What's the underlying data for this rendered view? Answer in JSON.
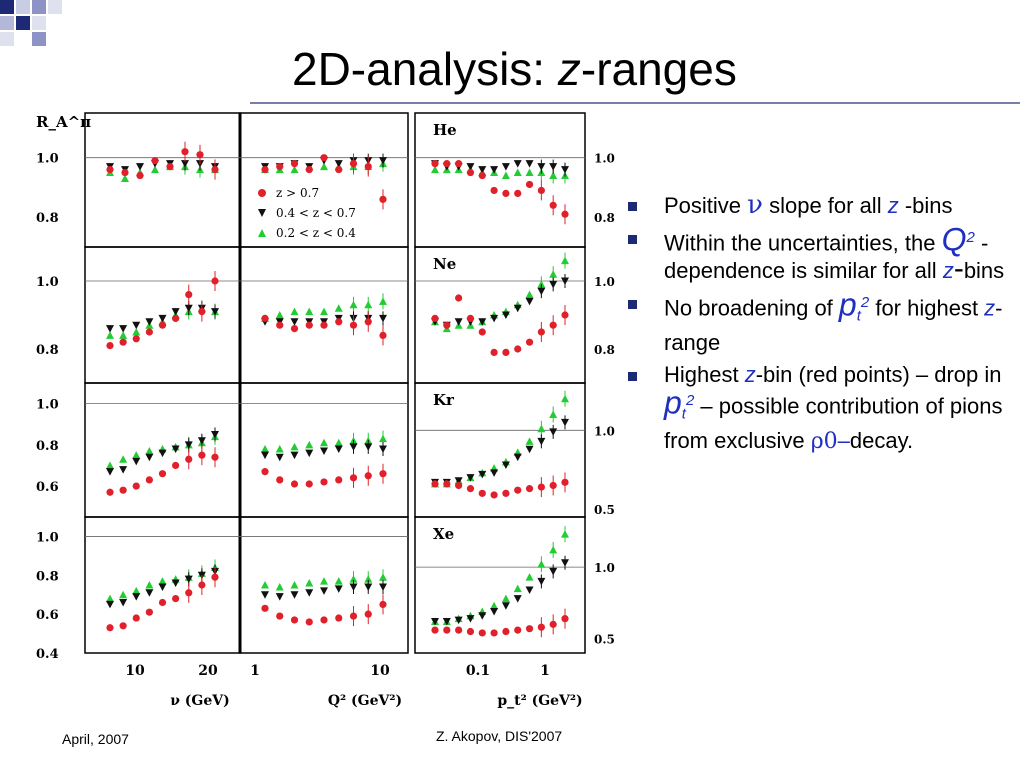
{
  "slide": {
    "title_main": "2D-analysis: ",
    "title_italic": "z",
    "title_rest": "-ranges",
    "footer_left": "April, 2007",
    "footer_center": "Z. Akopov, DIS'2007"
  },
  "bullets": [
    {
      "parts": [
        "Positive ",
        "ν",
        " slope for all ",
        "z",
        " -bins"
      ]
    },
    {
      "parts": [
        "Within the uncertainties, the ",
        "Q",
        "2",
        " -dependence is similar for all ",
        "z",
        "-",
        "bins"
      ]
    },
    {
      "parts": [
        "No broadening of ",
        "p",
        "t",
        "2",
        " for highest ",
        "z",
        "-range"
      ]
    },
    {
      "parts": [
        "Highest ",
        "z",
        "-bin (red points) – drop in ",
        "p",
        "t",
        "2",
        " – possible contribution of pions from exclusive ",
        "ρ0",
        "–",
        "decay."
      ]
    }
  ],
  "colors": {
    "red": "#e0202a",
    "black": "#111111",
    "green": "#22cc33",
    "accent": "#1c2a75",
    "blue_text": "#1f2fbf"
  },
  "chart_data": {
    "type": "scatter",
    "ylabel": "R_A^π",
    "targets": [
      "He",
      "Ne",
      "Kr",
      "Xe"
    ],
    "columns": [
      {
        "xlabel": "ν (GeV)",
        "xticks": [
          "10",
          "20"
        ]
      },
      {
        "xlabel": "Q² (GeV²)",
        "xticks": [
          "1",
          "10"
        ]
      },
      {
        "xlabel": "p_t² (GeV²)",
        "xticks": [
          "0.1",
          "1"
        ]
      }
    ],
    "left_yticks": [
      [
        "1.0",
        "0.8"
      ],
      [
        "1.0",
        "0.8"
      ],
      [
        "1.0",
        "0.8",
        "0.6"
      ],
      [
        "1.0",
        "0.8",
        "0.6",
        "0.4"
      ]
    ],
    "right_yticks": [
      [
        "1.0",
        "0.8"
      ],
      [
        "1.0",
        "0.8"
      ],
      [
        "1.0",
        "0.5"
      ],
      [
        "1.0",
        "0.5"
      ]
    ],
    "legend": [
      {
        "label": "z > 0.7",
        "color": "red",
        "marker": "circle"
      },
      {
        "label": "0.4 < z < 0.7",
        "color": "black",
        "marker": "triangle-down"
      },
      {
        "label": "0.2 < z < 0.4",
        "color": "green",
        "marker": "triangle-up"
      }
    ],
    "panels": [
      {
        "target": "He",
        "column": "nu",
        "red": [
          0.96,
          0.95,
          0.94,
          0.99,
          0.97,
          1.02,
          1.01,
          0.96
        ],
        "black": [
          0.97,
          0.96,
          0.97,
          0.98,
          0.98,
          0.98,
          0.98,
          0.97
        ],
        "green": [
          0.95,
          0.93,
          0.95,
          0.96,
          0.97,
          0.97,
          0.96,
          0.96
        ]
      },
      {
        "target": "He",
        "column": "q2",
        "red": [
          0.96,
          0.97,
          0.98,
          0.96,
          1.0,
          0.96,
          0.98,
          0.97,
          0.86
        ],
        "black": [
          0.97,
          0.97,
          0.98,
          0.97,
          0.99,
          0.98,
          0.99,
          0.99,
          0.99
        ],
        "green": [
          0.96,
          0.96,
          0.96,
          0.97,
          0.97,
          0.97,
          0.97,
          0.97,
          0.98
        ]
      },
      {
        "target": "He",
        "column": "pt2",
        "red": [
          0.98,
          0.98,
          0.98,
          0.95,
          0.94,
          0.89,
          0.88,
          0.88,
          0.91,
          0.89,
          0.84,
          0.81
        ],
        "black": [
          0.98,
          0.97,
          0.97,
          0.97,
          0.96,
          0.96,
          0.97,
          0.98,
          0.98,
          0.97,
          0.97,
          0.96
        ],
        "green": [
          0.96,
          0.96,
          0.96,
          0.96,
          0.95,
          0.95,
          0.94,
          0.95,
          0.95,
          0.95,
          0.94,
          0.94
        ]
      },
      {
        "target": "Ne",
        "column": "nu",
        "red": [
          0.81,
          0.82,
          0.83,
          0.85,
          0.87,
          0.89,
          0.96,
          0.91,
          1.0
        ],
        "black": [
          0.86,
          0.86,
          0.87,
          0.88,
          0.89,
          0.91,
          0.92,
          0.92,
          0.91
        ],
        "green": [
          0.84,
          0.84,
          0.85,
          0.87,
          0.88,
          0.9,
          0.91,
          0.92,
          0.91
        ],
        "count": 9
      },
      {
        "target": "Ne",
        "column": "q2",
        "red": [
          0.89,
          0.87,
          0.86,
          0.87,
          0.87,
          0.88,
          0.87,
          0.88,
          0.84
        ],
        "black": [
          0.88,
          0.88,
          0.88,
          0.88,
          0.88,
          0.89,
          0.89,
          0.89,
          0.89
        ],
        "green": [
          0.89,
          0.9,
          0.91,
          0.91,
          0.91,
          0.92,
          0.93,
          0.93,
          0.94
        ]
      },
      {
        "target": "Ne",
        "column": "pt2",
        "red": [
          0.89,
          0.87,
          0.95,
          0.89,
          0.85,
          0.79,
          0.79,
          0.8,
          0.82,
          0.85,
          0.87,
          0.9
        ],
        "black": [
          0.88,
          0.87,
          0.88,
          0.88,
          0.88,
          0.89,
          0.9,
          0.92,
          0.94,
          0.97,
          0.99,
          1.0
        ],
        "green": [
          0.88,
          0.86,
          0.87,
          0.87,
          0.88,
          0.9,
          0.91,
          0.93,
          0.96,
          0.99,
          1.02,
          1.06
        ]
      },
      {
        "target": "Kr",
        "column": "nu",
        "red": [
          0.57,
          0.58,
          0.6,
          0.63,
          0.66,
          0.7,
          0.73,
          0.75,
          0.74
        ],
        "black": [
          0.67,
          0.68,
          0.72,
          0.74,
          0.76,
          0.78,
          0.8,
          0.82,
          0.85
        ],
        "green": [
          0.7,
          0.73,
          0.75,
          0.77,
          0.78,
          0.79,
          0.8,
          0.81,
          0.84
        ]
      },
      {
        "target": "Kr",
        "column": "q2",
        "red": [
          0.67,
          0.63,
          0.61,
          0.61,
          0.62,
          0.63,
          0.64,
          0.65,
          0.66
        ],
        "black": [
          0.75,
          0.74,
          0.75,
          0.76,
          0.77,
          0.78,
          0.79,
          0.79,
          0.78
        ],
        "green": [
          0.78,
          0.78,
          0.79,
          0.8,
          0.81,
          0.81,
          0.82,
          0.82,
          0.83
        ]
      },
      {
        "target": "Kr",
        "column": "pt2",
        "red": [
          0.66,
          0.66,
          0.65,
          0.63,
          0.6,
          0.59,
          0.6,
          0.62,
          0.63,
          0.64,
          0.65,
          0.67
        ],
        "black": [
          0.67,
          0.67,
          0.68,
          0.7,
          0.72,
          0.73,
          0.78,
          0.83,
          0.88,
          0.93,
          0.99,
          1.05
        ],
        "green": [
          0.66,
          0.66,
          0.68,
          0.7,
          0.73,
          0.76,
          0.8,
          0.86,
          0.93,
          1.01,
          1.1,
          1.2
        ]
      },
      {
        "target": "Xe",
        "column": "nu",
        "red": [
          0.53,
          0.54,
          0.58,
          0.61,
          0.66,
          0.68,
          0.71,
          0.75,
          0.79
        ],
        "black": [
          0.65,
          0.66,
          0.69,
          0.71,
          0.74,
          0.76,
          0.78,
          0.8,
          0.82
        ],
        "green": [
          0.68,
          0.7,
          0.72,
          0.75,
          0.77,
          0.78,
          0.79,
          0.81,
          0.84
        ]
      },
      {
        "target": "Xe",
        "column": "q2",
        "red": [
          0.63,
          0.59,
          0.57,
          0.56,
          0.57,
          0.58,
          0.59,
          0.6,
          0.65
        ],
        "black": [
          0.7,
          0.69,
          0.7,
          0.71,
          0.72,
          0.73,
          0.74,
          0.74,
          0.74
        ],
        "green": [
          0.75,
          0.74,
          0.75,
          0.76,
          0.77,
          0.77,
          0.78,
          0.78,
          0.79
        ]
      },
      {
        "target": "Xe",
        "column": "pt2",
        "red": [
          0.56,
          0.56,
          0.56,
          0.55,
          0.54,
          0.54,
          0.55,
          0.56,
          0.57,
          0.58,
          0.6,
          0.64
        ],
        "black": [
          0.62,
          0.62,
          0.63,
          0.64,
          0.66,
          0.69,
          0.73,
          0.78,
          0.84,
          0.9,
          0.97,
          1.03
        ],
        "green": [
          0.62,
          0.62,
          0.64,
          0.66,
          0.69,
          0.73,
          0.78,
          0.85,
          0.93,
          1.02,
          1.12,
          1.23
        ]
      }
    ]
  }
}
